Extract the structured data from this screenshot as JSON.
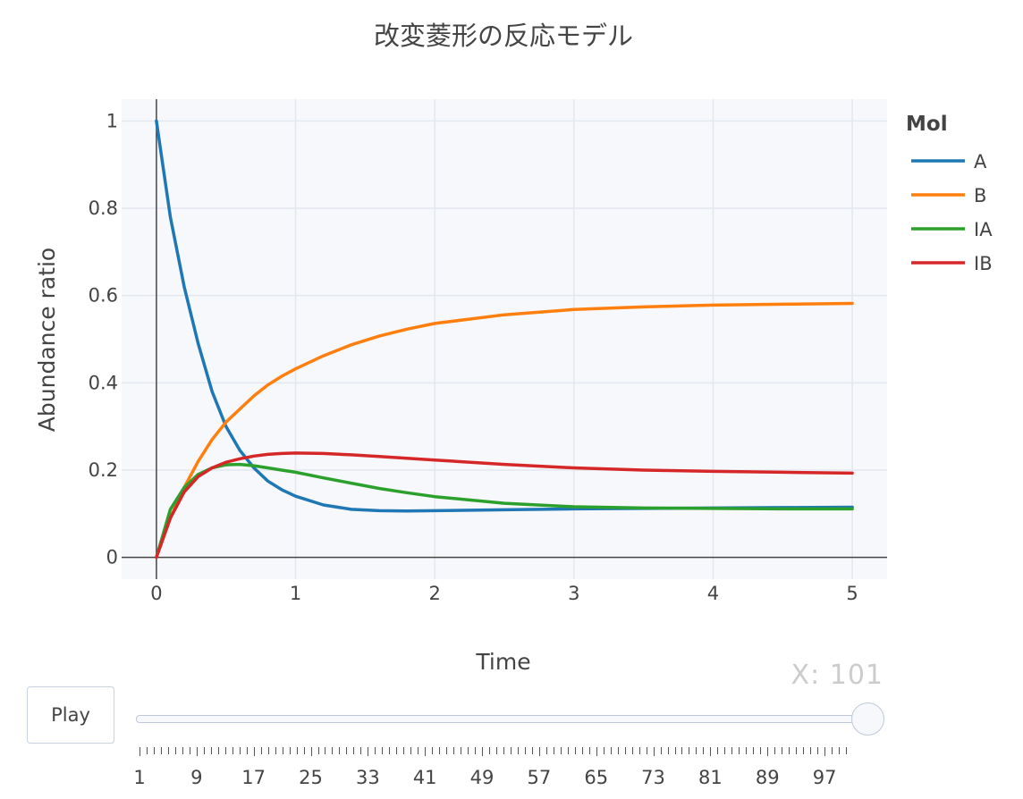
{
  "chart_data": {
    "type": "line",
    "title": "改変菱形の反応モデル",
    "xlabel": "Time",
    "ylabel": "Abundance ratio",
    "xlim": [
      -0.25,
      5.25
    ],
    "ylim": [
      -0.05,
      1.05
    ],
    "x_ticks": [
      0,
      1,
      2,
      3,
      4,
      5
    ],
    "y_ticks": [
      0,
      0.2,
      0.4,
      0.6,
      0.8,
      1
    ],
    "y_tick_labels": [
      "0",
      "0.2",
      "0.4",
      "0.6",
      "0.8",
      "1"
    ],
    "grid": true,
    "legend_title": "Mol",
    "legend_position": "top-right",
    "series": [
      {
        "name": "A",
        "color": "#1f77b4",
        "x": [
          0,
          0.1,
          0.2,
          0.3,
          0.4,
          0.5,
          0.6,
          0.7,
          0.8,
          0.9,
          1.0,
          1.2,
          1.4,
          1.6,
          1.8,
          2.0,
          2.5,
          3.0,
          3.5,
          4.0,
          4.5,
          5.0
        ],
        "y": [
          1.0,
          0.78,
          0.62,
          0.49,
          0.38,
          0.3,
          0.245,
          0.205,
          0.175,
          0.155,
          0.14,
          0.12,
          0.11,
          0.107,
          0.106,
          0.107,
          0.109,
          0.111,
          0.112,
          0.113,
          0.114,
          0.115
        ]
      },
      {
        "name": "B",
        "color": "#ff7f0e",
        "x": [
          0,
          0.1,
          0.2,
          0.3,
          0.4,
          0.5,
          0.6,
          0.7,
          0.8,
          0.9,
          1.0,
          1.2,
          1.4,
          1.6,
          1.8,
          2.0,
          2.5,
          3.0,
          3.5,
          4.0,
          4.5,
          5.0
        ],
        "y": [
          0.0,
          0.09,
          0.16,
          0.22,
          0.27,
          0.31,
          0.34,
          0.37,
          0.395,
          0.415,
          0.432,
          0.462,
          0.487,
          0.507,
          0.523,
          0.536,
          0.556,
          0.568,
          0.574,
          0.578,
          0.58,
          0.582
        ]
      },
      {
        "name": "IA",
        "color": "#2ca02c",
        "x": [
          0,
          0.1,
          0.2,
          0.3,
          0.4,
          0.5,
          0.6,
          0.7,
          0.8,
          0.9,
          1.0,
          1.2,
          1.4,
          1.6,
          1.8,
          2.0,
          2.5,
          3.0,
          3.5,
          4.0,
          4.5,
          5.0
        ],
        "y": [
          0.0,
          0.11,
          0.16,
          0.19,
          0.205,
          0.212,
          0.213,
          0.21,
          0.205,
          0.2,
          0.195,
          0.182,
          0.17,
          0.158,
          0.148,
          0.139,
          0.124,
          0.116,
          0.113,
          0.112,
          0.111,
          0.111
        ]
      },
      {
        "name": "IB",
        "color": "#d62728",
        "x": [
          0,
          0.1,
          0.2,
          0.3,
          0.4,
          0.5,
          0.6,
          0.7,
          0.8,
          0.9,
          1.0,
          1.2,
          1.4,
          1.6,
          1.8,
          2.0,
          2.5,
          3.0,
          3.5,
          4.0,
          4.5,
          5.0
        ],
        "y": [
          0.0,
          0.09,
          0.15,
          0.185,
          0.205,
          0.218,
          0.226,
          0.232,
          0.236,
          0.238,
          0.239,
          0.238,
          0.235,
          0.231,
          0.227,
          0.223,
          0.213,
          0.205,
          0.2,
          0.197,
          0.195,
          0.193
        ]
      }
    ]
  },
  "controls": {
    "play_label": "Play",
    "slider_readout": "X: 101",
    "slider_value": 101,
    "slider_min": 1,
    "slider_max": 101,
    "slider_tick_labels": [
      "1",
      "9",
      "17",
      "25",
      "33",
      "41",
      "49",
      "57",
      "65",
      "73",
      "81",
      "89",
      "97"
    ]
  }
}
